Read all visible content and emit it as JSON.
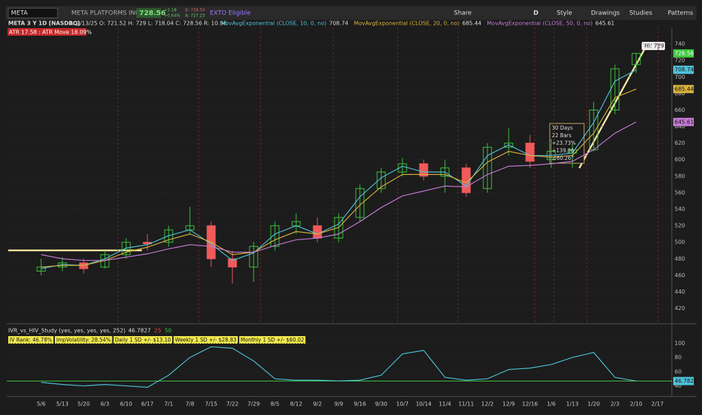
{
  "toolbar": {
    "symbol": "META",
    "company": "META PLATFORMS INC A",
    "last": "728.56",
    "change": "+2.18",
    "change_pct": "+0.64%",
    "bid": "B: 728.50",
    "ask": "A: 727.23",
    "exto": "EXTO Eligible",
    "buttons": [
      "Share",
      "Style",
      "Drawings",
      "Studies",
      "Patterns"
    ],
    "aggregation": "D"
  },
  "header": {
    "symbol_line": "META 3 Y 1D [NASDAQ]",
    "ohlc": "D: 2/13/25 O: 721.52 H: 729 L: 718.04 C: 728.56 R: 10.96",
    "atr": "ATR 17.58 : ATR Move 18.09%"
  },
  "annotation": {
    "high": "Hi: 729",
    "lines": [
      "30 Days",
      "22 Bars",
      "+23.73%",
      "+139.96",
      "∠60.26°"
    ]
  },
  "study_header": {
    "title": "IVR_vs_HIV_Study (yes, yes, yes, yes, 252)",
    "levels": [
      "25",
      "50"
    ],
    "stats": [
      "IV Rank: 46.78%",
      "ImpVolatility: 28.54%",
      "Daily 1 SD +/- $13.10",
      "Weekly 1 SD +/- $28.83",
      "Monthly 1 SD +/- $60.02"
    ]
  },
  "chart_data": [
    {
      "type": "candlestick",
      "categories": [
        "5/6",
        "5/13",
        "5/20",
        "6/3",
        "6/10",
        "6/17",
        "7/1",
        "7/8",
        "7/15",
        "7/22",
        "7/29",
        "8/5",
        "8/12",
        "9/2",
        "9/9",
        "9/16",
        "9/30",
        "10/7",
        "10/14",
        "11/4",
        "11/11",
        "12/2",
        "12/9",
        "12/16",
        "1/6",
        "1/13",
        "1/20",
        "2/3",
        "2/10",
        "2/17"
      ],
      "open": [
        465,
        470,
        475,
        470,
        485,
        500,
        500,
        515,
        520,
        480,
        470,
        495,
        520,
        520,
        505,
        530,
        565,
        585,
        595,
        580,
        590,
        565,
        615,
        620,
        600,
        608,
        612,
        660,
        715,
        null
      ],
      "high": [
        480,
        482,
        480,
        490,
        505,
        510,
        520,
        543,
        525,
        490,
        500,
        525,
        535,
        530,
        535,
        570,
        590,
        602,
        600,
        600,
        595,
        620,
        638,
        630,
        625,
        620,
        670,
        715,
        729,
        null
      ],
      "low": [
        460,
        465,
        462,
        468,
        480,
        490,
        495,
        510,
        470,
        450,
        452,
        490,
        510,
        500,
        500,
        525,
        560,
        580,
        575,
        560,
        555,
        560,
        605,
        590,
        590,
        590,
        610,
        655,
        705,
        null
      ],
      "close": [
        470,
        475,
        468,
        485,
        500,
        498,
        515,
        520,
        480,
        470,
        495,
        520,
        525,
        505,
        530,
        565,
        585,
        595,
        580,
        590,
        560,
        615,
        620,
        598,
        610,
        612,
        660,
        710,
        728.56,
        null
      ],
      "up_color": "#3ec93e",
      "down_color": "#f05a5a",
      "series": [
        {
          "name": "MovAvgExponential (CLOSE, 10, 0, no)",
          "color": "#4fc3d9",
          "values": [
            468,
            473,
            472,
            480,
            493,
            497,
            508,
            515,
            498,
            478,
            487,
            510,
            520,
            510,
            522,
            555,
            578,
            592,
            585,
            585,
            568,
            605,
            618,
            605,
            605,
            608,
            645,
            695,
            708.74,
            null
          ]
        },
        {
          "name": "MovAvgExponential (CLOSE, 20, 0, no)",
          "color": "#d9b23c",
          "values": [
            470,
            472,
            472,
            478,
            488,
            494,
            503,
            510,
            500,
            485,
            488,
            503,
            513,
            510,
            518,
            545,
            567,
            582,
            582,
            582,
            572,
            597,
            610,
            605,
            603,
            605,
            632,
            675,
            685.44,
            null
          ]
        },
        {
          "name": "MovAvgExponential (CLOSE, 50, 0, no)",
          "color": "#c57ad6",
          "values": [
            485,
            480,
            478,
            478,
            482,
            486,
            492,
            497,
            495,
            488,
            488,
            496,
            503,
            505,
            510,
            525,
            542,
            556,
            562,
            568,
            567,
            582,
            592,
            593,
            595,
            598,
            612,
            632,
            645.61,
            null
          ]
        }
      ],
      "ylim": [
        403,
        760
      ],
      "yticks": [
        420,
        440,
        460,
        480,
        500,
        520,
        540,
        560,
        580,
        600,
        620,
        640,
        660,
        680,
        700,
        720,
        740
      ],
      "grid": true
    },
    {
      "type": "line",
      "series": [
        {
          "name": "IVR_vs_HIV_Study",
          "color": "#4fc3d9",
          "values": [
            45,
            42,
            40,
            42,
            40,
            38,
            55,
            80,
            95,
            93,
            75,
            50,
            48,
            48,
            47,
            48,
            55,
            85,
            90,
            52,
            48,
            50,
            63,
            65,
            70,
            80,
            87,
            52,
            46.7827,
            null
          ]
        }
      ],
      "ylim": [
        28,
        110
      ],
      "yticks": [
        40,
        60,
        80,
        100
      ]
    }
  ]
}
